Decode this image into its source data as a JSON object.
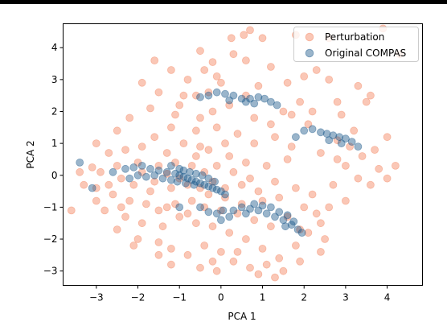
{
  "chart_data": {
    "type": "scatter",
    "title": "",
    "xlabel": "PCA 1",
    "ylabel": "PCA 2",
    "xlim": [
      -3.8,
      4.85
    ],
    "ylim": [
      -3.45,
      4.75
    ],
    "xticks": [
      -3,
      -2,
      -1,
      0,
      1,
      2,
      3,
      4
    ],
    "yticks": [
      -3,
      -2,
      -1,
      0,
      1,
      2,
      3,
      4
    ],
    "xtick_labels": [
      "−3",
      "−2",
      "−1",
      "0",
      "1",
      "2",
      "3",
      "4"
    ],
    "ytick_labels": [
      "−3",
      "−2",
      "−1",
      "0",
      "1",
      "2",
      "3",
      "4"
    ],
    "grid": false,
    "legend_position": "upper right",
    "series": [
      {
        "name": "Perturbation",
        "color": "#f4825e",
        "opacity": 0.45,
        "points": [
          [
            0.55,
            4.4
          ],
          [
            0.7,
            4.55
          ],
          [
            1.0,
            4.3
          ],
          [
            0.3,
            3.8
          ],
          [
            -0.5,
            3.9
          ],
          [
            0.25,
            4.3
          ],
          [
            1.8,
            4.4
          ],
          [
            2.6,
            4.3
          ],
          [
            3.9,
            4.6
          ],
          [
            -1.6,
            3.6
          ],
          [
            -0.4,
            3.3
          ],
          [
            -1.2,
            3.3
          ],
          [
            -0.8,
            3.0
          ],
          [
            -0.2,
            3.55
          ],
          [
            0.0,
            2.9
          ],
          [
            -0.9,
            2.5
          ],
          [
            -0.6,
            2.5
          ],
          [
            -1.5,
            2.6
          ],
          [
            -1.9,
            2.9
          ],
          [
            -0.3,
            2.6
          ],
          [
            0.6,
            3.6
          ],
          [
            1.2,
            3.4
          ],
          [
            2.3,
            3.3
          ],
          [
            2.6,
            3.0
          ],
          [
            3.3,
            2.8
          ],
          [
            3.6,
            2.5
          ],
          [
            4.3,
            3.8
          ],
          [
            2.8,
            2.3
          ],
          [
            1.9,
            2.3
          ],
          [
            1.5,
            2.0
          ],
          [
            0.8,
            1.8
          ],
          [
            0.2,
            2.2
          ],
          [
            -0.2,
            2.0
          ],
          [
            -0.5,
            1.8
          ],
          [
            -1.1,
            1.9
          ],
          [
            -1.7,
            2.1
          ],
          [
            -2.2,
            1.8
          ],
          [
            -2.5,
            1.4
          ],
          [
            -3.0,
            1.0
          ],
          [
            -2.7,
            0.7
          ],
          [
            -2.3,
            0.8
          ],
          [
            -1.9,
            0.9
          ],
          [
            -1.6,
            1.2
          ],
          [
            -1.2,
            1.5
          ],
          [
            -0.6,
            1.4
          ],
          [
            -0.1,
            1.5
          ],
          [
            0.4,
            1.3
          ],
          [
            0.8,
            1.0
          ],
          [
            1.3,
            1.2
          ],
          [
            1.7,
            0.9
          ],
          [
            2.1,
            1.6
          ],
          [
            2.8,
            1.1
          ],
          [
            3.1,
            0.9
          ],
          [
            3.4,
            0.6
          ],
          [
            3.7,
            0.8
          ],
          [
            4.0,
            1.2
          ],
          [
            4.2,
            0.3
          ],
          [
            3.8,
            0.2
          ],
          [
            3.0,
            0.3
          ],
          [
            2.8,
            0.5
          ],
          [
            2.4,
            0.7
          ],
          [
            1.6,
            0.5
          ],
          [
            1.1,
            0.3
          ],
          [
            0.6,
            0.4
          ],
          [
            0.2,
            0.6
          ],
          [
            -0.1,
            0.3
          ],
          [
            -0.5,
            0.9
          ],
          [
            -0.9,
            1.0
          ],
          [
            -1.3,
            0.7
          ],
          [
            -2.0,
            0.4
          ],
          [
            -2.5,
            0.3
          ],
          [
            -2.9,
            0.1
          ],
          [
            -3.1,
            0.25
          ],
          [
            -3.4,
            0.1
          ],
          [
            -3.3,
            -0.3
          ],
          [
            -3.0,
            -0.4
          ],
          [
            -2.6,
            -0.6
          ],
          [
            -2.2,
            -0.8
          ],
          [
            -1.8,
            -0.9
          ],
          [
            -1.5,
            -1.1
          ],
          [
            -1.1,
            -0.9
          ],
          [
            -0.7,
            -0.8
          ],
          [
            -0.3,
            -0.6
          ],
          [
            0.1,
            -0.4
          ],
          [
            0.5,
            -0.3
          ],
          [
            0.9,
            -0.5
          ],
          [
            1.3,
            -0.2
          ],
          [
            1.8,
            -0.4
          ],
          [
            2.2,
            -0.6
          ],
          [
            2.6,
            -1.0
          ],
          [
            3.0,
            -0.8
          ],
          [
            2.4,
            -1.5
          ],
          [
            2.1,
            -1.8
          ],
          [
            1.8,
            -2.2
          ],
          [
            1.4,
            -2.6
          ],
          [
            1.0,
            -2.3
          ],
          [
            0.6,
            -2.0
          ],
          [
            0.2,
            -1.8
          ],
          [
            -0.2,
            -1.6
          ],
          [
            -0.6,
            -1.5
          ],
          [
            -1.0,
            -1.3
          ],
          [
            -1.4,
            -1.6
          ],
          [
            -1.9,
            -1.5
          ],
          [
            -2.3,
            -1.3
          ],
          [
            -2.8,
            -1.1
          ],
          [
            -3.6,
            -1.1
          ],
          [
            -2.5,
            -1.7
          ],
          [
            -2.0,
            -2.0
          ],
          [
            -1.5,
            -2.1
          ],
          [
            -1.2,
            -2.3
          ],
          [
            -0.8,
            -2.5
          ],
          [
            -0.4,
            -2.2
          ],
          [
            0.0,
            -2.4
          ],
          [
            0.3,
            -2.7
          ],
          [
            0.7,
            -2.9
          ],
          [
            1.1,
            -2.8
          ],
          [
            1.5,
            -3.0
          ],
          [
            1.3,
            -3.2
          ],
          [
            1.9,
            -2.7
          ],
          [
            2.4,
            -2.4
          ],
          [
            -1.2,
            -2.8
          ],
          [
            -0.5,
            -2.9
          ],
          [
            -0.1,
            -3.0
          ],
          [
            0.9,
            -3.1
          ],
          [
            -1.5,
            -2.5
          ],
          [
            -2.1,
            -2.2
          ],
          [
            0.0,
            -1.1
          ],
          [
            0.4,
            -1.2
          ],
          [
            0.8,
            -1.4
          ],
          [
            1.2,
            -1.6
          ],
          [
            1.6,
            -1.3
          ],
          [
            2.0,
            -1.0
          ],
          [
            -0.4,
            -1.0
          ],
          [
            -0.8,
            -1.2
          ],
          [
            -1.3,
            -1.0
          ],
          [
            -1.7,
            -0.5
          ],
          [
            -2.1,
            -0.3
          ],
          [
            -2.4,
            -0.1
          ],
          [
            -1.9,
            0.1
          ],
          [
            -1.5,
            0.3
          ],
          [
            -1.1,
            0.4
          ],
          [
            -0.7,
            0.3
          ],
          [
            -0.4,
            0.1
          ],
          [
            -1.3,
            0.05
          ],
          [
            -1.0,
            -0.1
          ],
          [
            -0.8,
            -0.3
          ],
          [
            -0.5,
            -0.4
          ],
          [
            -1.2,
            -0.4
          ],
          [
            -1.6,
            -0.2
          ],
          [
            -0.6,
            0.6
          ],
          [
            -0.2,
            -0.2
          ],
          [
            0.3,
            0.1
          ],
          [
            0.7,
            -0.1
          ],
          [
            1.0,
            -0.8
          ],
          [
            1.4,
            -0.7
          ],
          [
            0.5,
            -0.9
          ],
          [
            0.1,
            -0.7
          ],
          [
            2.3,
            -1.2
          ],
          [
            2.7,
            -0.3
          ],
          [
            3.3,
            -0.1
          ],
          [
            1.7,
            1.9
          ],
          [
            2.2,
            2.0
          ],
          [
            2.9,
            1.9
          ],
          [
            3.2,
            1.4
          ],
          [
            0.1,
            1.0
          ],
          [
            -0.3,
            0.8
          ],
          [
            -2.7,
            -0.3
          ],
          [
            -3.0,
            -0.8
          ],
          [
            -2.4,
            -1.0
          ],
          [
            1.9,
            -1.7
          ],
          [
            2.5,
            -2.0
          ],
          [
            0.4,
            -2.4
          ],
          [
            -0.2,
            -2.7
          ],
          [
            1.2,
            1.6
          ],
          [
            0.6,
            2.5
          ],
          [
            -1.0,
            2.2
          ],
          [
            -0.1,
            3.1
          ],
          [
            0.9,
            2.8
          ],
          [
            1.6,
            2.9
          ],
          [
            3.5,
            2.3
          ],
          [
            2.0,
            3.1
          ],
          [
            4.0,
            -0.1
          ],
          [
            3.6,
            -0.3
          ]
        ]
      },
      {
        "name": "Original COMPAS",
        "color": "#1f5a8c",
        "opacity": 0.45,
        "points": [
          [
            -3.4,
            0.4
          ],
          [
            -3.1,
            -0.4
          ],
          [
            -2.6,
            0.1
          ],
          [
            -2.3,
            0.2
          ],
          [
            -2.1,
            0.25
          ],
          [
            -1.9,
            0.3
          ],
          [
            -1.7,
            0.2
          ],
          [
            -1.5,
            0.15
          ],
          [
            -1.3,
            0.1
          ],
          [
            -1.1,
            0.05
          ],
          [
            -1.0,
            0.0
          ],
          [
            -0.9,
            -0.05
          ],
          [
            -0.8,
            -0.1
          ],
          [
            -0.7,
            -0.15
          ],
          [
            -0.6,
            -0.2
          ],
          [
            -0.5,
            -0.25
          ],
          [
            -0.4,
            -0.3
          ],
          [
            -0.3,
            -0.35
          ],
          [
            -0.2,
            -0.4
          ],
          [
            -0.1,
            -0.45
          ],
          [
            0.0,
            -0.5
          ],
          [
            -1.2,
            0.3
          ],
          [
            -1.0,
            0.2
          ],
          [
            -0.9,
            0.15
          ],
          [
            -0.75,
            0.1
          ],
          [
            -0.6,
            0.05
          ],
          [
            -0.45,
            0.0
          ],
          [
            -0.3,
            -0.1
          ],
          [
            -1.4,
            -0.1
          ],
          [
            -1.2,
            -0.15
          ],
          [
            -1.05,
            -0.2
          ],
          [
            -0.85,
            -0.25
          ],
          [
            -0.65,
            -0.3
          ],
          [
            -1.8,
            -0.05
          ],
          [
            -2.0,
            0.0
          ],
          [
            -1.6,
            0.0
          ],
          [
            -2.2,
            -0.1
          ],
          [
            -0.15,
            -0.2
          ],
          [
            0.1,
            -0.6
          ],
          [
            0.05,
            -1.1
          ],
          [
            0.3,
            -1.1
          ],
          [
            0.5,
            -1.0
          ],
          [
            0.7,
            -1.05
          ],
          [
            0.9,
            -1.1
          ],
          [
            1.1,
            -1.2
          ],
          [
            1.3,
            -1.3
          ],
          [
            1.5,
            -1.4
          ],
          [
            1.7,
            -1.55
          ],
          [
            1.85,
            -1.7
          ],
          [
            1.95,
            -1.8
          ],
          [
            1.2,
            -1.0
          ],
          [
            1.0,
            -0.95
          ],
          [
            0.8,
            -0.9
          ],
          [
            1.4,
            -1.15
          ],
          [
            1.6,
            -1.25
          ],
          [
            -0.1,
            -1.2
          ],
          [
            -0.3,
            -1.15
          ],
          [
            -0.5,
            -1.0
          ],
          [
            0.2,
            -1.3
          ],
          [
            1.55,
            -1.6
          ],
          [
            1.75,
            -1.45
          ],
          [
            -0.3,
            2.5
          ],
          [
            -0.1,
            2.6
          ],
          [
            0.1,
            2.55
          ],
          [
            0.3,
            2.5
          ],
          [
            0.5,
            2.4
          ],
          [
            0.7,
            2.4
          ],
          [
            0.9,
            2.45
          ],
          [
            1.05,
            2.4
          ],
          [
            1.2,
            2.3
          ],
          [
            1.35,
            2.2
          ],
          [
            0.8,
            2.25
          ],
          [
            0.6,
            2.3
          ],
          [
            0.2,
            2.35
          ],
          [
            -0.5,
            2.45
          ],
          [
            2.0,
            1.4
          ],
          [
            2.2,
            1.45
          ],
          [
            2.4,
            1.35
          ],
          [
            2.55,
            1.3
          ],
          [
            2.7,
            1.25
          ],
          [
            2.85,
            1.2
          ],
          [
            3.0,
            1.15
          ],
          [
            3.15,
            1.05
          ],
          [
            3.3,
            0.9
          ],
          [
            2.6,
            1.1
          ],
          [
            2.9,
            1.0
          ],
          [
            1.8,
            1.2
          ],
          [
            -1.0,
            -1.0
          ],
          [
            0.0,
            -1.4
          ],
          [
            0.6,
            -1.2
          ]
        ]
      }
    ]
  }
}
